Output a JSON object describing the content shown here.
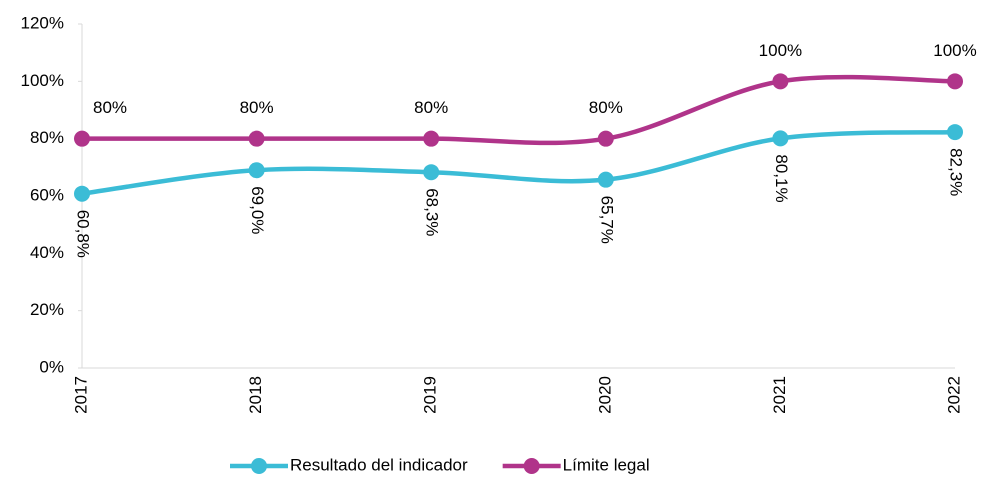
{
  "chart_data": {
    "type": "line",
    "categories": [
      "2017",
      "2018",
      "2019",
      "2020",
      "2021",
      "2022"
    ],
    "series": [
      {
        "name": "Resultado del indicador",
        "color": "#3bbcd6",
        "values": [
          60.8,
          69.0,
          68.3,
          65.7,
          80.1,
          82.3
        ],
        "value_labels": [
          "60,8%",
          "69,0%",
          "68,3%",
          "65,7%",
          "80,1%",
          "82,3%"
        ]
      },
      {
        "name": "Límite legal",
        "color": "#b0348a",
        "values": [
          80,
          80,
          80,
          80,
          100,
          100
        ],
        "value_labels": [
          "80%",
          "80%",
          "80%",
          "80%",
          "100%",
          "100%"
        ]
      }
    ],
    "ylim": [
      0,
      120
    ],
    "yticks": [
      {
        "value": 0,
        "label": "0%"
      },
      {
        "value": 20,
        "label": "20%"
      },
      {
        "value": 40,
        "label": "40%"
      },
      {
        "value": 60,
        "label": "60%"
      },
      {
        "value": 80,
        "label": "80%"
      },
      {
        "value": 100,
        "label": "100%"
      },
      {
        "value": 120,
        "label": "120%"
      }
    ],
    "grid": false,
    "smooth": true,
    "legend": "bottom"
  }
}
